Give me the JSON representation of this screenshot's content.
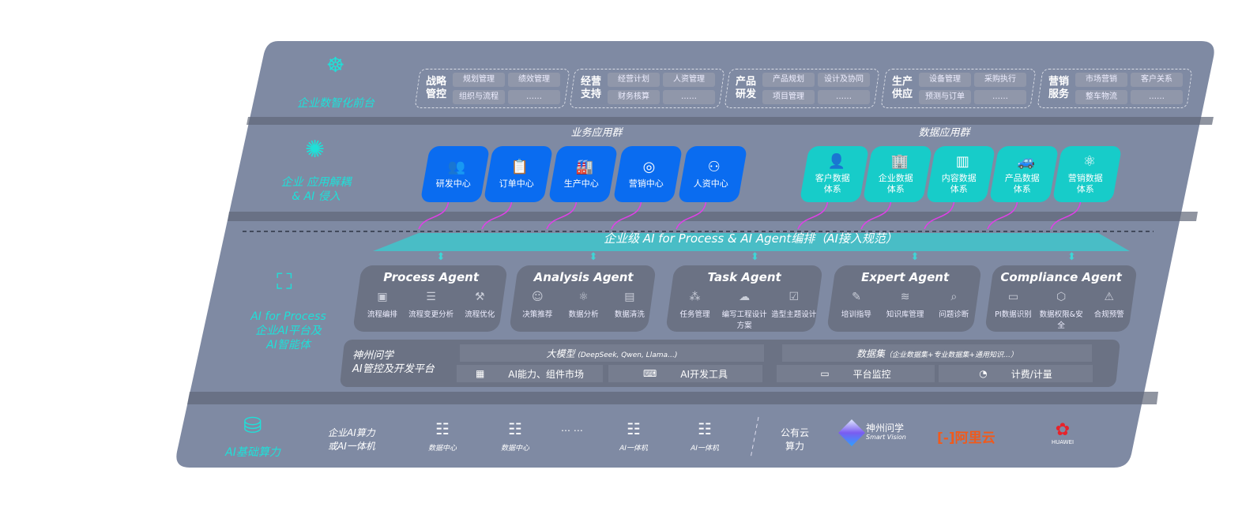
{
  "colors": {
    "panel": "#7f8aa3",
    "cyan": "#1fe0d8",
    "business_tile": "#0a6cf0",
    "data_tile": "#17ccc9",
    "arrow": "#e040e8",
    "agent_box": "#6b7284"
  },
  "layers": {
    "front": {
      "label": "企业数智化前台",
      "icon": "brain-icon"
    },
    "apps": {
      "label_line1": "企业 应用解耦",
      "label_line2": "& AI 侵入",
      "icon": "network-node-icon"
    },
    "ai": {
      "label_line1": "AI for Process",
      "label_line2": "企业AI平台及",
      "label_line3": "AI智能体",
      "icon": "face-scan-icon"
    },
    "compute": {
      "label": "AI基础算力",
      "icon": "database-icon"
    }
  },
  "front_groups": [
    {
      "title": [
        "战略",
        "管控"
      ],
      "chips": [
        "规划管理",
        "绩效管理",
        "组织与流程",
        "……"
      ]
    },
    {
      "title": [
        "经营",
        "支持"
      ],
      "chips": [
        "经营计划",
        "人资管理",
        "财务核算",
        "……"
      ]
    },
    {
      "title": [
        "产品",
        "研发"
      ],
      "chips": [
        "产品规划",
        "设计及协同",
        "项目管理",
        "……"
      ]
    },
    {
      "title": [
        "生产",
        "供应"
      ],
      "chips": [
        "设备管理",
        "采购执行",
        "预测与订单",
        "……"
      ]
    },
    {
      "title": [
        "营销",
        "服务"
      ],
      "chips": [
        "市场营销",
        "客户关系",
        "整车物流",
        "……"
      ]
    }
  ],
  "business_apps": {
    "title": "业务应用群",
    "items": [
      {
        "label": "研发中心",
        "icon": "users-icon"
      },
      {
        "label": "订单中心",
        "icon": "clipboard-icon"
      },
      {
        "label": "生产中心",
        "icon": "factory-icon"
      },
      {
        "label": "营销中心",
        "icon": "target-icon"
      },
      {
        "label": "人资中心",
        "icon": "person-icon"
      }
    ]
  },
  "data_apps": {
    "title": "数据应用群",
    "items": [
      {
        "label": "客户数据体系",
        "icon": "user-icon"
      },
      {
        "label": "企业数据体系",
        "icon": "building-icon"
      },
      {
        "label": "内容数据体系",
        "icon": "books-icon"
      },
      {
        "label": "产品数据体系",
        "icon": "car-icon"
      },
      {
        "label": "营销数据体系",
        "icon": "atom-icon"
      }
    ]
  },
  "orchestration": "企业级 AI for Process & AI Agent编排（AI接入规范）",
  "agents": [
    {
      "name": "Process Agent",
      "features": [
        {
          "label": "流程编排",
          "icon": "chart-window-icon"
        },
        {
          "label": "流程变更分析",
          "icon": "list-icon"
        },
        {
          "label": "流程优化",
          "icon": "tools-icon"
        }
      ]
    },
    {
      "name": "Analysis Agent",
      "features": [
        {
          "label": "决策推荐",
          "icon": "head-icon"
        },
        {
          "label": "数据分析",
          "icon": "atom-icon"
        },
        {
          "label": "数据清洗",
          "icon": "document-icon"
        }
      ]
    },
    {
      "name": "Task Agent",
      "features": [
        {
          "label": "任务管理",
          "icon": "network-icon"
        },
        {
          "label": "编写工程设计方案",
          "icon": "cloud-icon"
        },
        {
          "label": "造型主题设计",
          "icon": "checklist-icon"
        }
      ]
    },
    {
      "name": "Expert Agent",
      "features": [
        {
          "label": "培训指导",
          "icon": "teacher-icon"
        },
        {
          "label": "知识库管理",
          "icon": "layers-icon"
        },
        {
          "label": "问题诊断",
          "icon": "diagnosis-icon"
        }
      ]
    },
    {
      "name": "Compliance Agent",
      "features": [
        {
          "label": "PI数据识别",
          "icon": "id-card-icon"
        },
        {
          "label": "数据权限&安全",
          "icon": "shield-icon"
        },
        {
          "label": "合规预警",
          "icon": "alert-icon"
        }
      ]
    }
  ],
  "platform": {
    "title_line1": "神州问学",
    "title_line2": "AI管控及开发平台",
    "llm": "大模型",
    "llm_note": "(DeepSeek, Qwen, Llama…)",
    "dataset": "数据集",
    "dataset_note": "（企业数据集+专业数据集+通用知识…）",
    "tools": [
      {
        "label": "AI能力、组件市场",
        "icon": "market-icon"
      },
      {
        "label": "AI开发工具",
        "icon": "dev-tool-icon"
      },
      {
        "label": "平台监控",
        "icon": "monitor-icon"
      },
      {
        "label": "计费/计量",
        "icon": "gauge-icon"
      }
    ]
  },
  "compute": {
    "private_line1": "企业AI算力",
    "private_line2": "或AI一体机",
    "servers": [
      {
        "label": "数据中心"
      },
      {
        "label": "数据中心"
      },
      {
        "label": "AI一体机"
      },
      {
        "label": "AI一体机"
      }
    ],
    "ellipsis": "… …",
    "public_line1": "公有云",
    "public_line2": "算力",
    "vendors": [
      {
        "name": "神州问学",
        "sub": "Smart Vision"
      },
      {
        "name": "阿里云"
      },
      {
        "name": "HUAWEI"
      }
    ]
  }
}
